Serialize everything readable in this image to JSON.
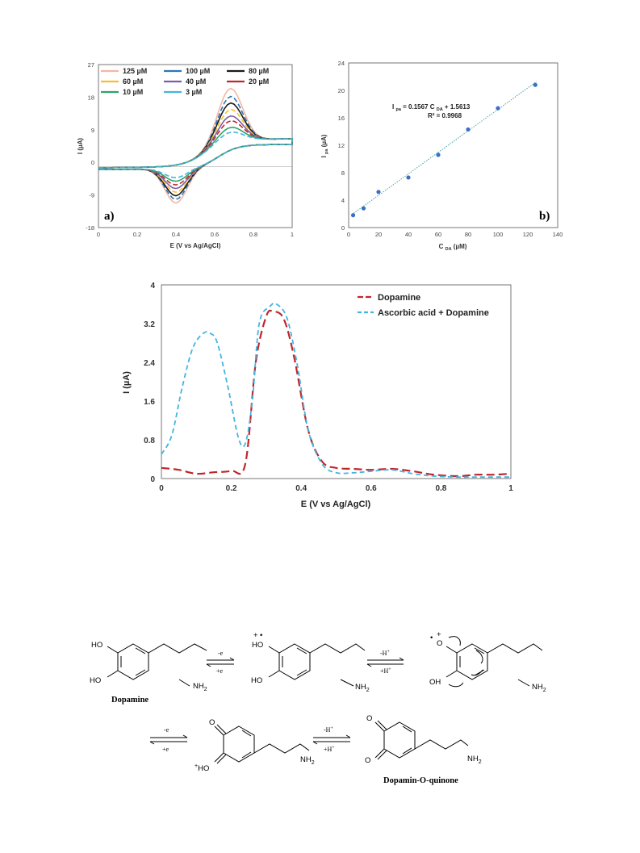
{
  "figure_top": {
    "panel_a": {
      "label": "a)",
      "xlabel": "E (V vs Ag/AgCl)",
      "ylabel": "I (µA)",
      "xticks": [
        "0",
        "0.2",
        "0.4",
        "0.6",
        "0.8",
        "1"
      ],
      "yticks": [
        "27",
        "18",
        "9",
        "0",
        "-9",
        "-18"
      ],
      "legend": [
        {
          "label": "125 µM",
          "color": "#f2b8a2",
          "dash": false
        },
        {
          "label": "100 µM",
          "color": "#2e75b6",
          "dash": false
        },
        {
          "label": "80 µM",
          "color": "#1a1a1a",
          "dash": false
        },
        {
          "label": "60 µM",
          "color": "#f4c12e",
          "dash": false
        },
        {
          "label": "40 µM",
          "color": "#7b5ea7",
          "dash": false
        },
        {
          "label": "20 µM",
          "color": "#c0272d",
          "dash": false
        },
        {
          "label": "10 µM",
          "color": "#2fa36b",
          "dash": false
        },
        {
          "label": "3 µM",
          "color": "#45b4e0",
          "dash": false
        }
      ]
    },
    "panel_b": {
      "label": "b)",
      "xlabel_main": "C",
      "xlabel_sub": "DA",
      "xlabel_unit": "(µM)",
      "ylabel_main": "I",
      "ylabel_sub": "pa",
      "ylabel_unit": "(µA)",
      "xticks": [
        "0",
        "20",
        "40",
        "60",
        "80",
        "100",
        "120",
        "140"
      ],
      "yticks": [
        "24",
        "20",
        "16",
        "12",
        "8",
        "4",
        "0"
      ],
      "eq_line1_a": "I",
      "eq_line1_sub": "pa",
      "eq_line1_b": "= 0.1567 C",
      "eq_line1_sub2": "DA",
      "eq_line1_c": "+ 1.5613",
      "eq_line2": "R² = 0.9968"
    },
    "chart_data": [
      {
        "type": "line",
        "title": "",
        "xlabel": "E (V vs Ag/AgCl)",
        "ylabel": "I (µA)",
        "xlim": [
          0,
          1
        ],
        "ylim": [
          -18,
          27
        ],
        "series_peaks": [
          {
            "name": "125 µM",
            "anodic_peak": 22.5,
            "cathodic_peak": -11.5
          },
          {
            "name": "100 µM",
            "anodic_peak": 20,
            "cathodic_peak": -10.5
          },
          {
            "name": "80 µM",
            "anodic_peak": 18,
            "cathodic_peak": -9.5
          },
          {
            "name": "60 µM",
            "anodic_peak": 16,
            "cathodic_peak": -8.5
          },
          {
            "name": "40 µM",
            "anodic_peak": 14,
            "cathodic_peak": -7.5
          },
          {
            "name": "20 µM",
            "anodic_peak": 12.5,
            "cathodic_peak": -6.5
          },
          {
            "name": "10 µM",
            "anodic_peak": 10.5,
            "cathodic_peak": -5.5
          },
          {
            "name": "3 µM",
            "anodic_peak": 9,
            "cathodic_peak": -4.5
          }
        ]
      },
      {
        "type": "scatter",
        "title": "",
        "xlabel": "C DA (µM)",
        "ylabel": "I pa (µA)",
        "xlim": [
          0,
          140
        ],
        "ylim": [
          0,
          24
        ],
        "x": [
          3,
          10,
          20,
          40,
          60,
          80,
          100,
          125
        ],
        "y": [
          1.8,
          2.8,
          5.2,
          7.3,
          10.6,
          14.3,
          17.4,
          20.8
        ],
        "trendline": {
          "slope": 0.1567,
          "intercept": 1.5613,
          "r2": 0.9968
        }
      },
      {
        "type": "line",
        "title": "",
        "xlabel": "E (V vs Ag/AgCl)",
        "ylabel": "I (µA)",
        "xlim": [
          0,
          1
        ],
        "ylim": [
          0,
          4
        ],
        "series": [
          {
            "name": "Dopamine",
            "color": "#c0272d",
            "x": [
              0,
              0.05,
              0.1,
              0.15,
              0.2,
              0.24,
              0.27,
              0.3,
              0.32,
              0.35,
              0.38,
              0.42,
              0.46,
              0.5,
              0.55,
              0.6,
              0.66,
              0.72,
              0.78,
              0.85,
              0.9,
              0.95,
              1.0
            ],
            "y": [
              0.22,
              0.18,
              0.1,
              0.13,
              0.16,
              0.3,
              2.4,
              3.35,
              3.45,
              3.3,
              2.5,
              1.0,
              0.35,
              0.22,
              0.2,
              0.18,
              0.2,
              0.15,
              0.08,
              0.05,
              0.08,
              0.08,
              0.1
            ]
          },
          {
            "name": "Ascorbic acid + Dopamine",
            "color": "#45b4e0",
            "x": [
              0,
              0.03,
              0.06,
              0.09,
              0.12,
              0.14,
              0.16,
              0.19,
              0.22,
              0.24,
              0.26,
              0.28,
              0.31,
              0.33,
              0.36,
              0.39,
              0.42,
              0.46,
              0.5,
              0.55,
              0.6,
              0.66,
              0.72,
              0.78,
              0.85,
              0.9,
              1.0
            ],
            "y": [
              0.5,
              0.9,
              1.9,
              2.7,
              3.0,
              3.0,
              2.8,
              1.9,
              0.85,
              0.72,
              1.6,
              3.2,
              3.55,
              3.6,
              3.3,
              2.3,
              1.0,
              0.3,
              0.12,
              0.12,
              0.15,
              0.18,
              0.1,
              0.05,
              0.03,
              0.03,
              0.03
            ]
          }
        ]
      }
    ]
  },
  "figure_middle": {
    "xlabel": "E (V vs Ag/AgCl)",
    "ylabel": "I (µA)",
    "xticks": [
      "0",
      "0.2",
      "0.4",
      "0.6",
      "0.8",
      "1"
    ],
    "yticks": [
      "4",
      "3.2",
      "2.4",
      "1.6",
      "0.8",
      "0"
    ],
    "legend": [
      {
        "label": "Dopamine",
        "color": "#c0272d"
      },
      {
        "label": "Ascorbic acid + Dopamine",
        "color": "#45b4e0"
      }
    ]
  },
  "scheme": {
    "dopamine_label": "Dopamine",
    "product_label": "Dopamin-O-quinone",
    "ho": "HO",
    "ho_radical_cation": "HO",
    "o_radical": "O",
    "oh": "OH",
    "nh2": "NH",
    "nh2_sub": "2",
    "o": "O",
    "ho_cation": "HO",
    "minus_e": "-e",
    "plus_e": "+e",
    "minus_h": "-H",
    "plus_h": "+H",
    "plus_sign": "+",
    "dot": "•"
  }
}
